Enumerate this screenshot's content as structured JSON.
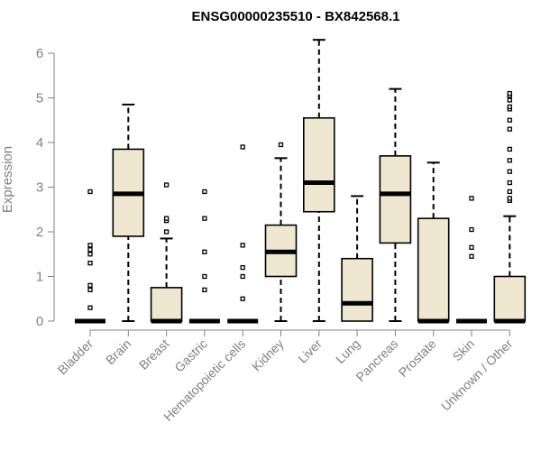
{
  "chart_data": {
    "type": "box",
    "title": "ENSG00000235510 - BX842568.1",
    "xlabel": "",
    "ylabel": "Expression",
    "ylim": [
      0,
      6.3
    ],
    "yticks": [
      0,
      1,
      2,
      3,
      4,
      5,
      6
    ],
    "grid": false,
    "legend": "none",
    "colors": {
      "box_fill": "#EFE7CF",
      "stroke": "#000000",
      "axis": "#808080",
      "label": "#808080",
      "title": "#000000"
    },
    "categories": [
      "Bladder",
      "Brain",
      "Breast",
      "Gastric",
      "Hematopoietic cells",
      "Kidney",
      "Liver",
      "Lung",
      "Pancreas",
      "Prostate",
      "Skin",
      "Unknown / Other"
    ],
    "boxes": [
      {
        "category": "Bladder",
        "min": 0,
        "q1": 0,
        "median": 0,
        "q3": 0,
        "max": 0,
        "outliers": [
          0.3,
          0.7,
          0.8,
          1.3,
          1.5,
          1.6,
          1.7,
          2.9
        ]
      },
      {
        "category": "Brain",
        "min": 0,
        "q1": 1.9,
        "median": 2.85,
        "q3": 3.85,
        "max": 4.85,
        "outliers": []
      },
      {
        "category": "Breast",
        "min": 0,
        "q1": 0,
        "median": 0,
        "q3": 0.75,
        "max": 1.85,
        "outliers": [
          2.0,
          2.25,
          2.3,
          3.05
        ]
      },
      {
        "category": "Gastric",
        "min": 0,
        "q1": 0,
        "median": 0,
        "q3": 0,
        "max": 0,
        "outliers": [
          0.7,
          1.0,
          1.55,
          2.3,
          2.9
        ]
      },
      {
        "category": "Hematopoietic cells",
        "min": 0,
        "q1": 0,
        "median": 0,
        "q3": 0,
        "max": 0,
        "outliers": [
          0.5,
          1.0,
          1.2,
          1.7,
          3.9
        ]
      },
      {
        "category": "Kidney",
        "min": 0,
        "q1": 1.0,
        "median": 1.55,
        "q3": 2.15,
        "max": 3.65,
        "outliers": [
          3.95
        ]
      },
      {
        "category": "Liver",
        "min": 0,
        "q1": 2.45,
        "median": 3.1,
        "q3": 4.55,
        "max": 6.3,
        "outliers": []
      },
      {
        "category": "Lung",
        "min": 0,
        "q1": 0,
        "median": 0.4,
        "q3": 1.4,
        "max": 2.8,
        "outliers": []
      },
      {
        "category": "Pancreas",
        "min": 0,
        "q1": 1.75,
        "median": 2.85,
        "q3": 3.7,
        "max": 5.2,
        "outliers": []
      },
      {
        "category": "Prostate",
        "min": 0,
        "q1": 0,
        "median": 0,
        "q3": 2.3,
        "max": 3.55,
        "outliers": []
      },
      {
        "category": "Skin",
        "min": 0,
        "q1": 0,
        "median": 0,
        "q3": 0,
        "max": 0,
        "outliers": [
          1.45,
          1.65,
          2.05,
          2.75
        ]
      },
      {
        "category": "Unknown / Other",
        "min": 0,
        "q1": 0,
        "median": 0,
        "q3": 1.0,
        "max": 2.35,
        "outliers": [
          2.7,
          2.75,
          2.9,
          3.1,
          3.35,
          3.6,
          3.85,
          4.3,
          4.5,
          4.75,
          4.8,
          4.95,
          5.05,
          5.1
        ]
      }
    ]
  }
}
